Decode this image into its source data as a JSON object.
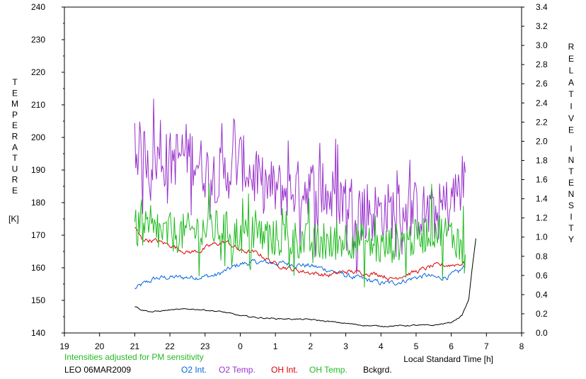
{
  "chart_data": {
    "type": "line",
    "left_axis_label_letters": [
      "T",
      "E",
      "M",
      "P",
      "E",
      "R",
      "A",
      "T",
      "U",
      "R",
      "E"
    ],
    "left_axis_unit": "[K]",
    "right_axis_label_word1": [
      "R",
      "E",
      "L",
      "A",
      "T",
      "I",
      "V",
      "E"
    ],
    "right_axis_label_word2": [
      "I",
      "N",
      "T",
      "E",
      "N",
      "S",
      "I",
      "T",
      "Y"
    ],
    "xlabel": "Local Standard Time [h]",
    "x_ticks": [
      19,
      20,
      21,
      22,
      23,
      0,
      1,
      2,
      3,
      4,
      5,
      6,
      7,
      8
    ],
    "xlim_hours": [
      19,
      32
    ],
    "left_ticks": [
      140,
      150,
      160,
      170,
      180,
      190,
      200,
      210,
      220,
      230,
      240
    ],
    "left_ylim": [
      140,
      240
    ],
    "right_ticks": [
      "0.0",
      "0.2",
      "0.4",
      "0.6",
      "0.8",
      "1.0",
      "1.2",
      "1.4",
      "1.6",
      "1.8",
      "2.0",
      "2.2",
      "2.4",
      "2.6",
      "2.8",
      "3.0",
      "3.2",
      "3.4"
    ],
    "right_ylim": [
      0,
      3.4
    ],
    "note": "Intensities adjusted for PM sensitivity",
    "station": "LEO 06MAR2009",
    "series": [
      {
        "name": "O2 Int.",
        "axis": "right",
        "color": "#0066dd",
        "noise": 0.025,
        "points": [
          [
            21.0,
            0.46
          ],
          [
            21.3,
            0.52
          ],
          [
            21.6,
            0.57
          ],
          [
            22.0,
            0.58
          ],
          [
            22.5,
            0.58
          ],
          [
            23.0,
            0.59
          ],
          [
            23.3,
            0.6
          ],
          [
            23.6,
            0.65
          ],
          [
            24.0,
            0.72
          ],
          [
            24.5,
            0.74
          ],
          [
            25.0,
            0.73
          ],
          [
            25.5,
            0.72
          ],
          [
            26.0,
            0.7
          ],
          [
            26.5,
            0.66
          ],
          [
            27.0,
            0.6
          ],
          [
            27.5,
            0.56
          ],
          [
            28.0,
            0.52
          ],
          [
            28.3,
            0.52
          ],
          [
            28.6,
            0.54
          ],
          [
            29.0,
            0.58
          ],
          [
            29.3,
            0.6
          ],
          [
            29.6,
            0.57
          ],
          [
            29.9,
            0.59
          ],
          [
            30.2,
            0.63
          ],
          [
            30.4,
            0.7
          ]
        ]
      },
      {
        "name": "O2 Temp.",
        "axis": "left",
        "color": "#9933cc",
        "noise": 9,
        "points": [
          [
            21.0,
            197
          ],
          [
            21.5,
            194
          ],
          [
            22.0,
            193
          ],
          [
            22.5,
            196
          ],
          [
            23.0,
            190
          ],
          [
            23.5,
            188
          ],
          [
            24.0,
            193
          ],
          [
            24.5,
            186
          ],
          [
            25.0,
            184
          ],
          [
            25.5,
            184
          ],
          [
            26.0,
            185
          ],
          [
            26.5,
            182
          ],
          [
            27.0,
            181
          ],
          [
            27.5,
            179
          ],
          [
            28.0,
            177
          ],
          [
            28.5,
            178
          ],
          [
            29.0,
            178
          ],
          [
            29.5,
            176
          ],
          [
            30.0,
            180
          ],
          [
            30.4,
            188
          ]
        ]
      },
      {
        "name": "OH Int.",
        "axis": "right",
        "color": "#dd0000",
        "noise": 0.022,
        "points": [
          [
            21.0,
            1.1
          ],
          [
            21.2,
            0.98
          ],
          [
            21.6,
            0.96
          ],
          [
            22.0,
            0.92
          ],
          [
            22.5,
            0.84
          ],
          [
            22.9,
            0.86
          ],
          [
            23.2,
            0.92
          ],
          [
            23.6,
            0.95
          ],
          [
            24.0,
            0.86
          ],
          [
            24.5,
            0.83
          ],
          [
            25.0,
            0.72
          ],
          [
            25.5,
            0.66
          ],
          [
            26.0,
            0.63
          ],
          [
            26.5,
            0.6
          ],
          [
            27.0,
            0.64
          ],
          [
            27.5,
            0.63
          ],
          [
            28.0,
            0.61
          ],
          [
            28.3,
            0.56
          ],
          [
            28.6,
            0.6
          ],
          [
            29.0,
            0.64
          ],
          [
            29.5,
            0.7
          ],
          [
            30.0,
            0.71
          ],
          [
            30.4,
            0.73
          ]
        ]
      },
      {
        "name": "OH Temp.",
        "axis": "left",
        "color": "#22bb22",
        "noise": 6,
        "points": [
          [
            21.0,
            172
          ],
          [
            21.5,
            171
          ],
          [
            22.0,
            170
          ],
          [
            22.5,
            171
          ],
          [
            23.0,
            172
          ],
          [
            23.5,
            172
          ],
          [
            24.0,
            170
          ],
          [
            24.5,
            170
          ],
          [
            25.0,
            169
          ],
          [
            25.5,
            169
          ],
          [
            26.0,
            168
          ],
          [
            26.5,
            167
          ],
          [
            27.0,
            169
          ],
          [
            27.5,
            168
          ],
          [
            28.0,
            166
          ],
          [
            28.5,
            168
          ],
          [
            29.0,
            169
          ],
          [
            29.5,
            172
          ],
          [
            30.0,
            170
          ],
          [
            30.4,
            167
          ]
        ]
      },
      {
        "name": "Bckgrd.",
        "axis": "right",
        "color": "#000000",
        "noise": 0.006,
        "points": [
          [
            21.0,
            0.28
          ],
          [
            21.2,
            0.24
          ],
          [
            21.5,
            0.22
          ],
          [
            22.0,
            0.24
          ],
          [
            22.6,
            0.25
          ],
          [
            23.0,
            0.24
          ],
          [
            23.5,
            0.22
          ],
          [
            24.0,
            0.18
          ],
          [
            24.5,
            0.16
          ],
          [
            25.0,
            0.15
          ],
          [
            26.0,
            0.14
          ],
          [
            27.0,
            0.1
          ],
          [
            27.5,
            0.08
          ],
          [
            28.0,
            0.07
          ],
          [
            29.0,
            0.08
          ],
          [
            29.5,
            0.08
          ],
          [
            30.0,
            0.11
          ],
          [
            30.3,
            0.18
          ],
          [
            30.5,
            0.35
          ],
          [
            30.6,
            0.7
          ],
          [
            30.7,
            0.98
          ]
        ]
      }
    ]
  }
}
